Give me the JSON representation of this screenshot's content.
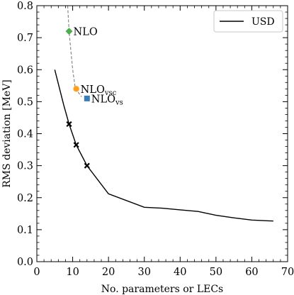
{
  "chart_data": {
    "type": "line",
    "xlabel": "No. parameters or LECs",
    "ylabel": "RMS deviation [MeV]",
    "xlim": [
      0,
      70
    ],
    "ylim": [
      0,
      0.8
    ],
    "xticks": [
      0,
      10,
      20,
      30,
      40,
      50,
      60,
      70
    ],
    "yticks": [
      0.0,
      0.1,
      0.2,
      0.3,
      0.4,
      0.5,
      0.6,
      0.7,
      0.8
    ],
    "grid": false,
    "legend": {
      "position": "top-right",
      "entries": [
        "USD"
      ]
    },
    "series": [
      {
        "name": "USD",
        "style": "solid",
        "color": "#000000",
        "x": [
          5,
          7.5,
          9,
          11,
          14,
          20,
          30,
          35,
          40,
          45,
          50,
          55,
          60,
          66
        ],
        "y": [
          0.6,
          0.49,
          0.43,
          0.365,
          0.3,
          0.212,
          0.17,
          0.167,
          0.162,
          0.157,
          0.145,
          0.137,
          0.13,
          0.127
        ]
      },
      {
        "style": "dashed",
        "color": "#7f7f7f",
        "x": [
          8.6,
          9,
          9.5,
          10,
          10.7,
          11.5,
          12.5
        ],
        "y": [
          0.8,
          0.72,
          0.66,
          0.6,
          0.545,
          0.53,
          0.515
        ]
      }
    ],
    "markers": [
      {
        "label": "",
        "x": 9,
        "y": 0.43,
        "shape": "x",
        "color": "#000000"
      },
      {
        "label": "",
        "x": 11,
        "y": 0.365,
        "shape": "x",
        "color": "#000000"
      },
      {
        "label": "",
        "x": 14,
        "y": 0.3,
        "shape": "x",
        "color": "#000000"
      },
      {
        "label": "NLO",
        "sub": "",
        "x": 9,
        "y": 0.72,
        "shape": "diamond",
        "color": "#4daf4a"
      },
      {
        "label": "NLO",
        "sub": "vsc",
        "x": 11,
        "y": 0.54,
        "shape": "circle",
        "color": "#ff9f1c"
      },
      {
        "label": "NLO",
        "sub": "vs",
        "x": 14,
        "y": 0.51,
        "shape": "square",
        "color": "#377eb8"
      }
    ]
  }
}
